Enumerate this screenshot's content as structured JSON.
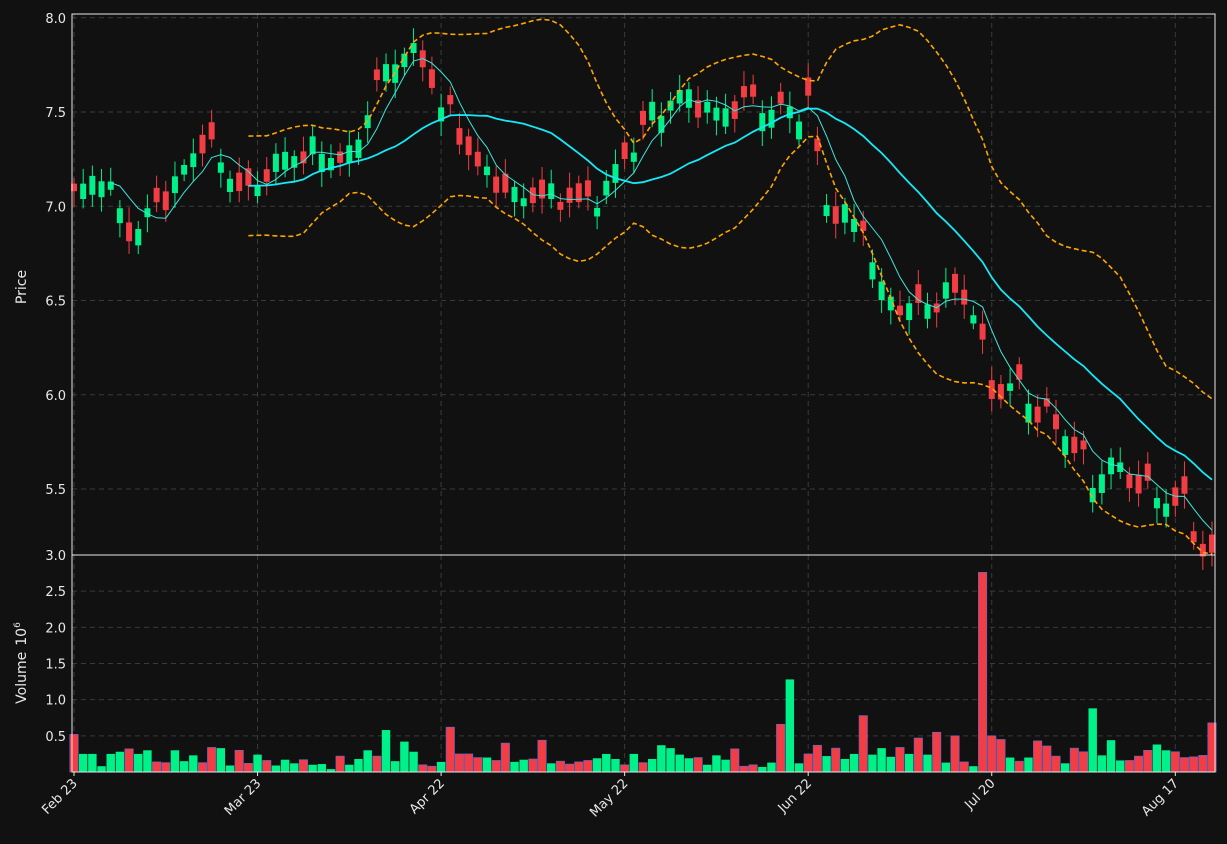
{
  "colors": {
    "background": "#111111",
    "up": "#00f08a",
    "down": "#f23d44",
    "band": "#ffa500",
    "ma_fast": "#3ee6d8",
    "ma_slow": "#16e8f8",
    "grid": "#3a3a3a",
    "axes": "#e8e8e8"
  },
  "chart_data": [
    {
      "type": "candlestick",
      "ylabel": "Price",
      "ylim": [
        5.15,
        8.02
      ],
      "yticks": [
        5.5,
        6.0,
        6.5,
        7.0,
        7.5,
        8.0
      ],
      "xticks": [
        {
          "index": 0,
          "label": "Feb 23"
        },
        {
          "index": 20,
          "label": "Mar 23"
        },
        {
          "index": 40,
          "label": "Apr 22"
        },
        {
          "index": 60,
          "label": "May 22"
        },
        {
          "index": 80,
          "label": "Jun 22"
        },
        {
          "index": 100,
          "label": "Jul 20"
        },
        {
          "index": 120,
          "label": "Aug 17"
        }
      ],
      "grid": true,
      "close_keypoints": [
        [
          0,
          7.05
        ],
        [
          3,
          7.2
        ],
        [
          6,
          6.85
        ],
        [
          10,
          7.05
        ],
        [
          14,
          7.35
        ],
        [
          19,
          7.05
        ],
        [
          22,
          7.25
        ],
        [
          26,
          7.3
        ],
        [
          30,
          7.25
        ],
        [
          33,
          7.65
        ],
        [
          36,
          7.85
        ],
        [
          38,
          7.75
        ],
        [
          40,
          7.55
        ],
        [
          44,
          7.2
        ],
        [
          48,
          7.05
        ],
        [
          52,
          7.05
        ],
        [
          56,
          7.0
        ],
        [
          60,
          7.25
        ],
        [
          63,
          7.5
        ],
        [
          66,
          7.6
        ],
        [
          70,
          7.5
        ],
        [
          74,
          7.55
        ],
        [
          78,
          7.5
        ],
        [
          80,
          7.55
        ],
        [
          82,
          7.0
        ],
        [
          86,
          6.9
        ],
        [
          88,
          6.55
        ],
        [
          91,
          6.45
        ],
        [
          94,
          6.5
        ],
        [
          96,
          6.55
        ],
        [
          98,
          6.45
        ],
        [
          100,
          6.0
        ],
        [
          103,
          6.05
        ],
        [
          105,
          5.9
        ],
        [
          108,
          5.8
        ],
        [
          111,
          5.55
        ],
        [
          113,
          5.65
        ],
        [
          116,
          5.5
        ],
        [
          119,
          5.45
        ],
        [
          121,
          5.4
        ],
        [
          123,
          5.15
        ]
      ],
      "ma_windows": [
        5,
        20
      ],
      "bollinger": {
        "window": 20,
        "k": 2
      },
      "note": "ohlc generated from close_keypoints"
    },
    {
      "type": "bar",
      "ylabel": "Volume",
      "ylabel_exponent": "6",
      "ylim": [
        0,
        3.0
      ],
      "yticks": [
        0.5,
        1.0,
        1.5,
        2.0,
        2.5,
        3.0
      ],
      "values": [
        0.52,
        0.25,
        0.25,
        0.08,
        0.25,
        0.28,
        0.32,
        0.25,
        0.3,
        0.14,
        0.13,
        0.3,
        0.15,
        0.23,
        0.13,
        0.34,
        0.33,
        0.09,
        0.3,
        0.12,
        0.24,
        0.16,
        0.09,
        0.17,
        0.12,
        0.17,
        0.1,
        0.11,
        0.04,
        0.22,
        0.1,
        0.18,
        0.3,
        0.22,
        0.58,
        0.15,
        0.42,
        0.28,
        0.1,
        0.08,
        0.14,
        0.62,
        0.25,
        0.25,
        0.2,
        0.2,
        0.16,
        0.4,
        0.14,
        0.17,
        0.18,
        0.44,
        0.12,
        0.15,
        0.11,
        0.14,
        0.16,
        0.19,
        0.25,
        0.18,
        0.1,
        0.25,
        0.13,
        0.18,
        0.37,
        0.33,
        0.24,
        0.19,
        0.2,
        0.1,
        0.23,
        0.17,
        0.32,
        0.08,
        0.1,
        0.07,
        0.13,
        0.66,
        1.28,
        0.12,
        0.25,
        0.37,
        0.22,
        0.33,
        0.18,
        0.25,
        0.78,
        0.24,
        0.33,
        0.21,
        0.34,
        0.25,
        0.47,
        0.24,
        0.55,
        0.13,
        0.5,
        0.14,
        0.08,
        2.76,
        0.5,
        0.45,
        0.2,
        0.15,
        0.2,
        0.43,
        0.36,
        0.22,
        0.12,
        0.33,
        0.28,
        0.88,
        0.23,
        0.44,
        0.16,
        0.16,
        0.22,
        0.3,
        0.38,
        0.3,
        0.28,
        0.2,
        0.21,
        0.23,
        0.68
      ],
      "up": [
        0,
        1,
        1,
        1,
        1,
        1,
        0,
        1,
        1,
        0,
        0,
        1,
        1,
        1,
        0,
        0,
        1,
        1,
        0,
        0,
        1,
        0,
        1,
        1,
        1,
        0,
        1,
        1,
        1,
        0,
        1,
        1,
        1,
        0,
        1,
        1,
        1,
        1,
        0,
        0,
        1,
        0,
        0,
        0,
        0,
        1,
        0,
        0,
        1,
        1,
        0,
        0,
        1,
        0,
        0,
        0,
        0,
        1,
        1,
        1,
        0,
        1,
        0,
        1,
        1,
        1,
        1,
        1,
        0,
        1,
        1,
        1,
        0,
        0,
        0,
        1,
        1,
        0,
        1,
        1,
        0,
        0,
        1,
        0,
        1,
        1,
        0,
        1,
        1,
        1,
        0,
        1,
        0,
        1,
        0,
        1,
        0,
        0,
        1,
        0,
        0,
        0,
        1,
        0,
        1,
        0,
        0,
        0,
        1,
        0,
        0,
        1,
        1,
        1,
        1,
        0,
        0,
        0,
        1,
        1,
        0,
        0,
        0,
        0,
        0
      ],
      "grid": true
    }
  ]
}
